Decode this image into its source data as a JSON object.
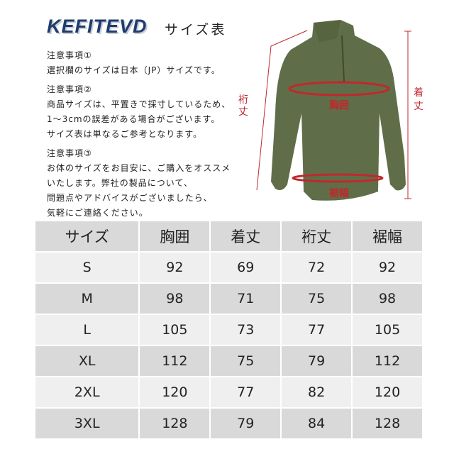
{
  "header": {
    "brand": "KEFITEVD",
    "subtitle": "サイズ表"
  },
  "notes": [
    {
      "title": "注意事項①",
      "lines": [
        "選択欄のサイズは日本（JP）サイズです。"
      ]
    },
    {
      "title": "注意事項②",
      "lines": [
        "商品サイズは、平置きで採寸しているため、",
        "1～3cmの誤差がある場合がございます。",
        "サイズ表は単なるご参考となります。"
      ]
    },
    {
      "title": "注意事項③",
      "lines": [
        "お体のサイズをお目安に、ご購入をオススメ",
        "いたします。弊社の製品について、",
        "問題点やアドバイスがございましたら、",
        "気軽にご連絡ください。"
      ]
    }
  ],
  "diagram": {
    "shirt_color": "#5f6e48",
    "marker_color": "#c0282d",
    "labels": {
      "sleeve": "裄丈",
      "length": "着丈",
      "chest": "胸囲",
      "hem": "裾幅"
    }
  },
  "table": {
    "headers": [
      "サイズ",
      "胸囲",
      "着丈",
      "裄丈",
      "裾幅"
    ],
    "rows": [
      [
        "S",
        "92",
        "69",
        "72",
        "92"
      ],
      [
        "M",
        "98",
        "71",
        "75",
        "98"
      ],
      [
        "L",
        "105",
        "73",
        "77",
        "105"
      ],
      [
        "XL",
        "112",
        "75",
        "79",
        "112"
      ],
      [
        "2XL",
        "120",
        "77",
        "82",
        "120"
      ],
      [
        "3XL",
        "128",
        "79",
        "84",
        "128"
      ]
    ]
  }
}
